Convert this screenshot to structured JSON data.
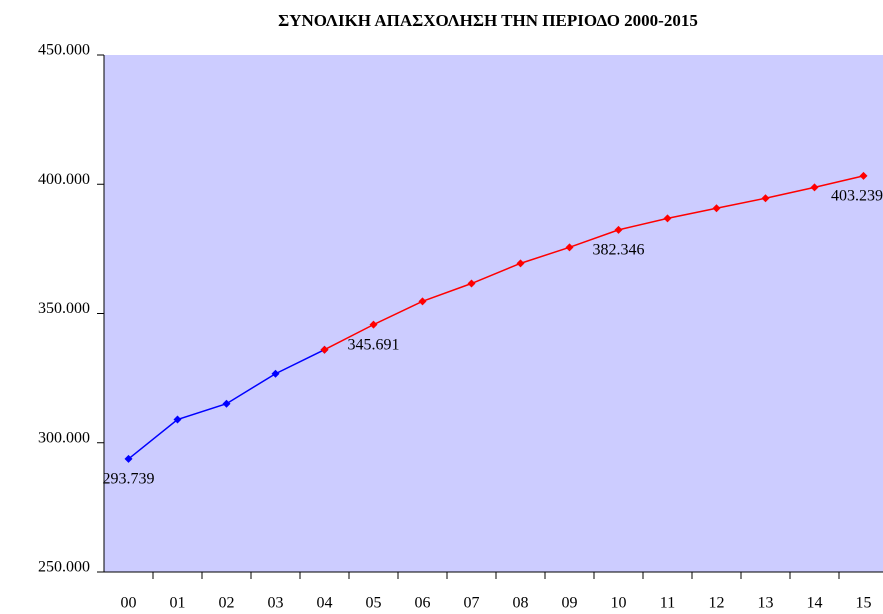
{
  "chart_data": {
    "type": "line",
    "title": "ΣΥΝΟΛΙΚΗ ΑΠΑΣΧΟΛΗΣΗ ΤΗΝ ΠΕΡΙΟΔΟ 2000-2015",
    "categories": [
      "00",
      "01",
      "02",
      "03",
      "04",
      "05",
      "06",
      "07",
      "08",
      "09",
      "10",
      "11",
      "12",
      "13",
      "14",
      "15"
    ],
    "series": [
      {
        "color": "#0000ff",
        "values": [
          293739,
          309000,
          315100,
          326700,
          336000,
          null,
          null,
          null,
          null,
          null,
          null,
          null,
          null,
          null,
          null,
          null
        ],
        "value_labels": [
          "293.739",
          null,
          null,
          null,
          null,
          null,
          null,
          null,
          null,
          null,
          null,
          null,
          null,
          null,
          null,
          null
        ]
      },
      {
        "color": "#ff0000",
        "values": [
          null,
          null,
          null,
          null,
          336000,
          345691,
          354700,
          361600,
          369400,
          375600,
          382346,
          386800,
          390700,
          394600,
          398800,
          403239
        ],
        "value_labels": [
          null,
          null,
          null,
          null,
          null,
          "345.691",
          null,
          null,
          null,
          null,
          "382.346",
          null,
          null,
          null,
          null,
          "403.239"
        ]
      }
    ],
    "ylim": [
      250000,
      450000
    ],
    "yticks": [
      {
        "value": 250000,
        "label": "250.000"
      },
      {
        "value": 300000,
        "label": "300.000"
      },
      {
        "value": 350000,
        "label": "350.000"
      },
      {
        "value": 400000,
        "label": "400.000"
      },
      {
        "value": 450000,
        "label": "450.000"
      }
    ],
    "plot_background": "#ccccff"
  }
}
